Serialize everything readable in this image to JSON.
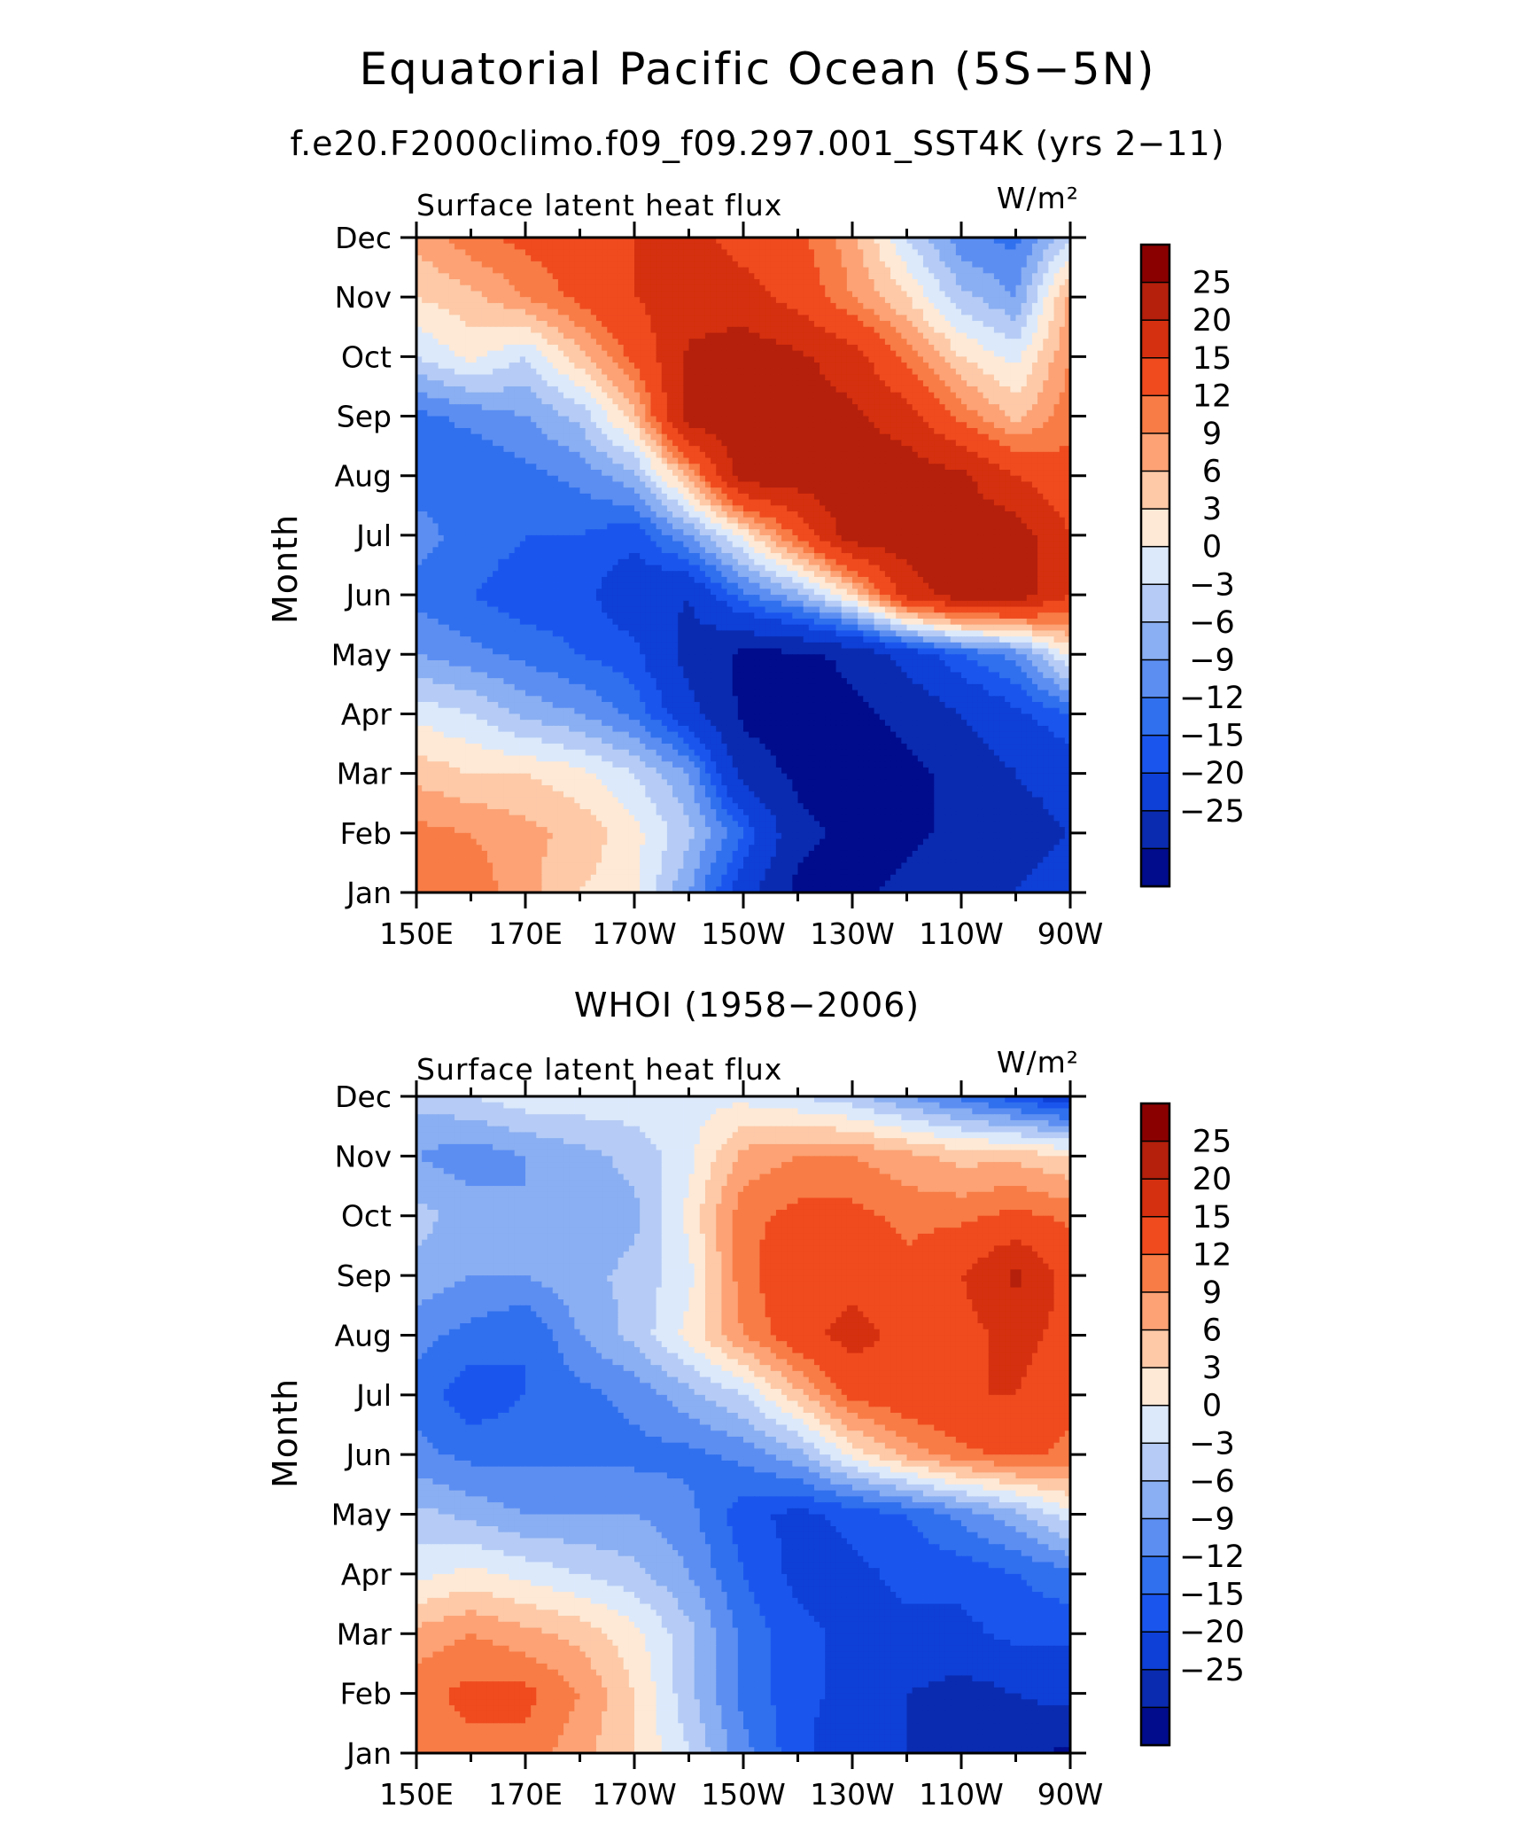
{
  "figure": {
    "title": "Equatorial Pacific Ocean (5S−5N)",
    "subtitle": "f.e20.F2000climo.f09_f09.297.001_SST4K (yrs 2−11)"
  },
  "chart_data": [
    {
      "type": "heatmap",
      "title": "",
      "left_label": "Surface latent heat flux",
      "right_label": "W/m²",
      "xlabel": "",
      "ylabel": "Month",
      "x_ticks": [
        "150E",
        "170E",
        "170W",
        "150W",
        "130W",
        "110W",
        "90W"
      ],
      "x_lon": [
        150,
        170,
        190,
        210,
        230,
        250,
        270
      ],
      "xlim": [
        150,
        270
      ],
      "y_ticks": [
        "Jan",
        "Feb",
        "Mar",
        "Apr",
        "May",
        "Jun",
        "Jul",
        "Aug",
        "Sep",
        "Oct",
        "Nov",
        "Dec"
      ],
      "colorbar_levels": [
        "25",
        "20",
        "15",
        "12",
        "9",
        "6",
        "3",
        "0",
        "−3",
        "−6",
        "−9",
        "−12",
        "−15",
        "−20",
        "−25"
      ],
      "lon": [
        150,
        160,
        170,
        180,
        190,
        200,
        210,
        220,
        230,
        240,
        250,
        260,
        270
      ],
      "values": [
        [
          12,
          14,
          10,
          6,
          4,
          -6,
          -18,
          -26,
          -26,
          -24,
          -22,
          -20,
          -18
        ],
        [
          13,
          12,
          10,
          8,
          4,
          -2,
          -12,
          -24,
          -26,
          -26,
          -24,
          -22,
          -20
        ],
        [
          8,
          6,
          6,
          4,
          0,
          -6,
          -22,
          -26,
          -26,
          -26,
          -24,
          -20,
          -18
        ],
        [
          2,
          0,
          -4,
          -6,
          -10,
          -18,
          -26,
          -28,
          -26,
          -24,
          -20,
          -16,
          -12
        ],
        [
          -6,
          -8,
          -10,
          -12,
          -14,
          -22,
          -26,
          -26,
          -24,
          -18,
          -12,
          -8,
          4
        ],
        [
          -10,
          -12,
          -14,
          -14,
          -18,
          -20,
          -10,
          -4,
          6,
          22,
          28,
          28,
          20
        ],
        [
          -8,
          -10,
          -12,
          -12,
          -14,
          -6,
          4,
          16,
          28,
          28,
          28,
          28,
          20
        ],
        [
          -10,
          -12,
          -10,
          -8,
          -4,
          10,
          28,
          28,
          28,
          28,
          26,
          20,
          16
        ],
        [
          -10,
          -8,
          -6,
          -2,
          8,
          28,
          28,
          28,
          26,
          22,
          14,
          8,
          14
        ],
        [
          0,
          4,
          0,
          8,
          16,
          26,
          28,
          26,
          22,
          14,
          6,
          2,
          12
        ],
        [
          6,
          8,
          12,
          16,
          20,
          22,
          22,
          18,
          12,
          6,
          -2,
          -6,
          10
        ],
        [
          10,
          14,
          16,
          18,
          20,
          22,
          18,
          16,
          10,
          0,
          -8,
          -10,
          0
        ]
      ]
    },
    {
      "type": "heatmap",
      "title": "WHOI (1958−2006)",
      "left_label": "Surface latent heat flux",
      "right_label": "W/m²",
      "xlabel": "",
      "ylabel": "Month",
      "x_ticks": [
        "150E",
        "170E",
        "170W",
        "150W",
        "130W",
        "110W",
        "90W"
      ],
      "x_lon": [
        150,
        170,
        190,
        210,
        230,
        250,
        270
      ],
      "xlim": [
        150,
        270
      ],
      "y_ticks": [
        "Jan",
        "Feb",
        "Mar",
        "Apr",
        "May",
        "Jun",
        "Jul",
        "Aug",
        "Sep",
        "Oct",
        "Nov",
        "Dec"
      ],
      "colorbar_levels": [
        "25",
        "20",
        "15",
        "12",
        "9",
        "6",
        "3",
        "0",
        "−3",
        "−6",
        "−9",
        "−12",
        "−15",
        "−20",
        "−25"
      ],
      "lon": [
        150,
        160,
        170,
        180,
        190,
        200,
        210,
        220,
        230,
        240,
        250,
        260,
        270
      ],
      "values": [
        [
          12,
          14,
          14,
          10,
          6,
          0,
          -8,
          -14,
          -18,
          -20,
          -22,
          -24,
          -26
        ],
        [
          14,
          16,
          16,
          12,
          6,
          -2,
          -10,
          -14,
          -16,
          -20,
          -22,
          -20,
          -18
        ],
        [
          10,
          12,
          10,
          8,
          4,
          -2,
          -10,
          -14,
          -16,
          -16,
          -16,
          -14,
          -14
        ],
        [
          2,
          4,
          2,
          0,
          -2,
          -6,
          -12,
          -16,
          -16,
          -14,
          -14,
          -12,
          -10
        ],
        [
          -2,
          -4,
          -6,
          -6,
          -6,
          -8,
          -14,
          -16,
          -14,
          -12,
          -8,
          -4,
          2
        ],
        [
          -8,
          -10,
          -10,
          -10,
          -10,
          -10,
          -8,
          -4,
          4,
          10,
          14,
          16,
          14
        ],
        [
          -10,
          -14,
          -12,
          -10,
          -8,
          -4,
          0,
          8,
          16,
          18,
          20,
          20,
          16
        ],
        [
          -8,
          -10,
          -12,
          -6,
          -2,
          4,
          12,
          18,
          22,
          18,
          18,
          22,
          18
        ],
        [
          -4,
          -6,
          -6,
          -4,
          -2,
          2,
          14,
          18,
          18,
          16,
          20,
          26,
          18
        ],
        [
          -2,
          -4,
          -6,
          -6,
          -4,
          4,
          14,
          16,
          16,
          14,
          14,
          16,
          14
        ],
        [
          -6,
          -8,
          -6,
          -4,
          -2,
          2,
          10,
          12,
          12,
          10,
          8,
          8,
          6
        ],
        [
          -2,
          0,
          2,
          2,
          2,
          2,
          2,
          0,
          -2,
          -6,
          -10,
          -14,
          -18
        ]
      ]
    }
  ]
}
